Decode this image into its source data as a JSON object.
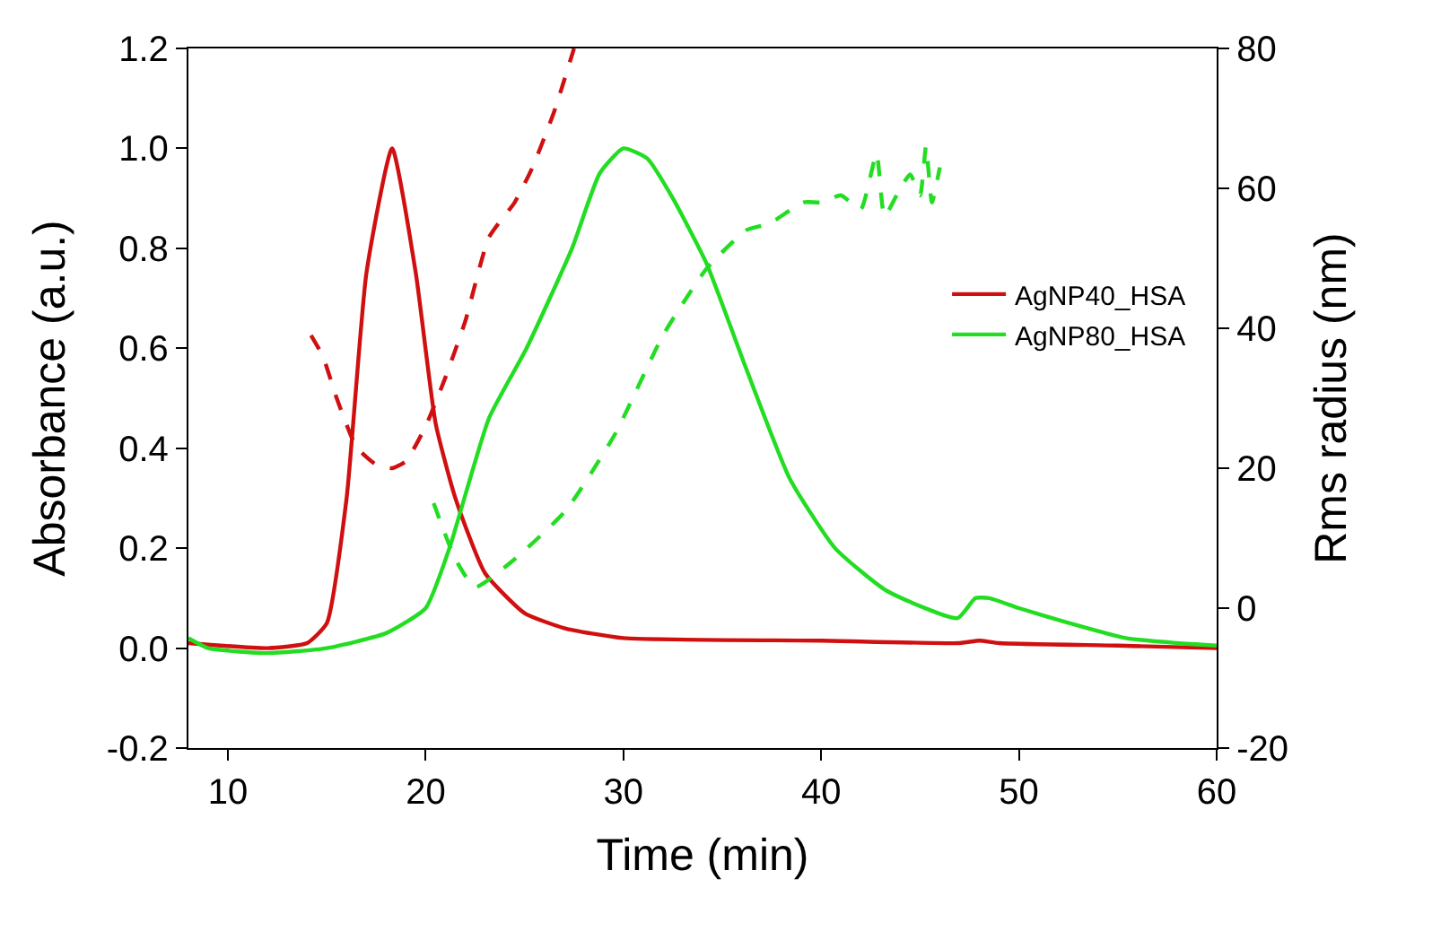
{
  "chart_data": {
    "type": "line",
    "xlabel": "Time (min)",
    "ylabel": "Absorbance (a.u.)",
    "y2label": "Rms radius (nm)",
    "xlim": [
      8,
      60
    ],
    "xticks": [
      10,
      20,
      30,
      40,
      50,
      60
    ],
    "ylim": [
      -0.2,
      1.2
    ],
    "yticks": [
      -0.2,
      {
        "value": 0,
        "label": "0.0"
      },
      0.2,
      0.4,
      0.6,
      0.8,
      {
        "value": 1,
        "label": "1.0"
      },
      1.2
    ],
    "y2lim": [
      -20,
      80
    ],
    "y2ticks": [
      -20,
      0,
      20,
      40,
      60,
      80
    ],
    "legend": "right",
    "marker": "none",
    "series": [
      {
        "name": "AgNP40_HSA",
        "color": "#d01010",
        "line_style": "solid",
        "x": [
          8,
          12,
          14,
          15,
          16,
          17,
          18.3,
          19.5,
          20.5,
          21.5,
          23,
          25,
          27,
          30,
          40,
          47,
          48,
          49,
          55,
          60
        ],
        "values": [
          0.01,
          0,
          0.01,
          0.05,
          0.3,
          0.75,
          1.0,
          0.75,
          0.45,
          0.3,
          0.15,
          0.07,
          0.04,
          0.02,
          0.015,
          0.01,
          0.015,
          0.01,
          0.005,
          0.0
        ]
      },
      {
        "name": "AgNP80_HSA",
        "color": "#22dd22",
        "line_style": "solid",
        "x": [
          8,
          9,
          12,
          15,
          18,
          20,
          21.2,
          23.2,
          25.1,
          27.4,
          28.8,
          30,
          31.2,
          32.5,
          34.2,
          36.2,
          38.4,
          40.7,
          43.3,
          46.9,
          47.8,
          48.5,
          50,
          52.1,
          55.4,
          58,
          60
        ],
        "values": [
          0.02,
          0.0,
          -0.01,
          0.0,
          0.03,
          0.08,
          0.2,
          0.46,
          0.6,
          0.8,
          0.95,
          1.0,
          0.98,
          0.9,
          0.77,
          0.56,
          0.34,
          0.2,
          0.115,
          0.06,
          0.1,
          0.1,
          0.08,
          0.055,
          0.02,
          0.01,
          0.005
        ]
      },
      {
        "color": "#d01010",
        "line_style": "dashed",
        "axis": "y2",
        "x": [
          14.2,
          14.8,
          15.5,
          16.5,
          17.5,
          18.3,
          19,
          20,
          21,
          22,
          23.2,
          24.5,
          25.4,
          26.5,
          27.5
        ],
        "values": [
          39,
          36,
          30,
          23,
          20.5,
          20,
          21,
          26,
          33,
          41,
          53,
          58,
          63,
          71,
          80
        ]
      },
      {
        "color": "#22dd22",
        "line_style": "dashed",
        "axis": "y2",
        "x": [
          20.4,
          21.5,
          22.5,
          24.5,
          27.1,
          29.6,
          32,
          34.2,
          36.2,
          37.4,
          39.1,
          40,
          41,
          42,
          42.8,
          43.2,
          44,
          44.5,
          45,
          45.3,
          45.6,
          46
        ],
        "values": [
          15,
          7,
          3,
          7,
          14,
          25,
          39,
          48.5,
          54,
          55,
          58,
          58,
          59,
          57,
          65,
          56,
          60,
          62,
          59,
          66,
          58,
          63
        ]
      }
    ]
  }
}
